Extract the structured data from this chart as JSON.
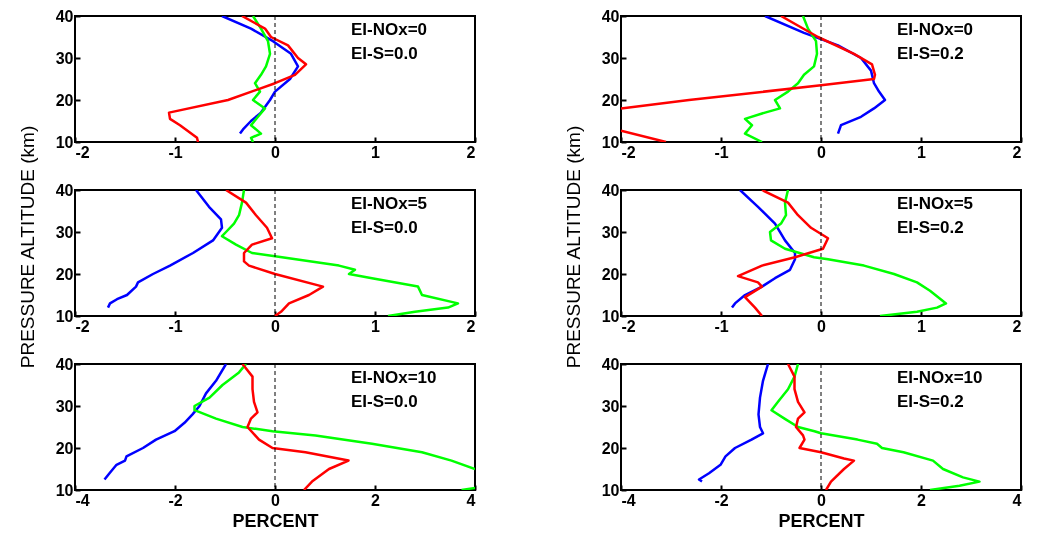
{
  "chart_data": [
    {
      "type": "line",
      "xlim": [
        -2,
        2
      ],
      "ylim": [
        10,
        40
      ],
      "xticks": [
        -2,
        -1,
        0,
        1,
        2
      ],
      "yticks": [
        10,
        20,
        30,
        40
      ],
      "annotations": [
        "EI-NOx=0",
        "EI-S=0.0"
      ],
      "ref_lines": [
        {
          "axis": "x",
          "value": 0,
          "color": "#000000",
          "line_style": "dashed"
        }
      ],
      "series": [
        {
          "color": "#0000ff",
          "x": [
            -0.53,
            -0.24,
            -0.02,
            0.16,
            0.23,
            0.15,
            0,
            -0.05,
            -0.14,
            -0.24,
            -0.32,
            -0.35
          ],
          "values": [
            40,
            37,
            34,
            31,
            28,
            25,
            22,
            20,
            17,
            15,
            13,
            12
          ]
        },
        {
          "color": "#00ff00",
          "x": [
            -0.22,
            -0.14,
            -0.07,
            -0.05,
            -0.09,
            -0.14,
            -0.2,
            -0.15,
            -0.22,
            -0.1,
            -0.17,
            -0.24,
            -0.14,
            -0.24,
            -0.22
          ],
          "values": [
            40,
            37,
            34,
            31,
            28,
            26,
            24,
            22,
            20,
            18,
            16,
            14,
            12,
            11,
            10
          ]
        },
        {
          "color": "#ff0000",
          "x": [
            -0.33,
            -0.1,
            -0.04,
            0.13,
            0.23,
            0.31,
            0.2,
            0,
            -0.47,
            -1.06,
            -1.05,
            -0.95,
            -0.78,
            -0.77
          ],
          "values": [
            40,
            37,
            35,
            33,
            30,
            28.5,
            26,
            24,
            20,
            17,
            15.5,
            14,
            11,
            10
          ]
        }
      ]
    },
    {
      "type": "line",
      "xlim": [
        -2,
        2
      ],
      "ylim": [
        10,
        40
      ],
      "xticks": [
        -2,
        -1,
        0,
        1,
        2
      ],
      "yticks": [
        10,
        20,
        30,
        40
      ],
      "annotations": [
        "EI-NOx=0",
        "EI-S=0.2"
      ],
      "ref_lines": [
        {
          "axis": "x",
          "value": 0,
          "color": "#000000",
          "line_style": "dashed"
        }
      ],
      "series": [
        {
          "color": "#0000ff",
          "x": [
            -0.56,
            -0.17,
            0.17,
            0.4,
            0.5,
            0.53,
            0.58,
            0.64,
            0.53,
            0.4,
            0.2,
            0.17
          ],
          "values": [
            40,
            36,
            33,
            30,
            27,
            24,
            22,
            20,
            18,
            16,
            14,
            12
          ]
        },
        {
          "color": "#00ff00",
          "x": [
            -0.18,
            -0.13,
            -0.05,
            -0.04,
            -0.07,
            -0.17,
            -0.23,
            -0.33,
            -0.46,
            -0.41,
            -0.56,
            -0.76,
            -0.69,
            -0.76,
            -0.59
          ],
          "values": [
            40,
            37,
            34,
            31,
            28,
            26,
            24,
            22,
            20,
            18,
            17,
            15.5,
            14,
            12,
            10
          ]
        },
        {
          "color": "#ff0000",
          "x": [
            -0.4,
            -0.03,
            0.33,
            0.51,
            0.54,
            0.53,
            0,
            -1.32,
            -2,
            null,
            -2,
            -1.55
          ],
          "values": [
            40,
            35,
            31,
            28.5,
            26,
            25,
            23.5,
            20,
            18,
            null,
            12.7,
            10
          ]
        }
      ]
    },
    {
      "type": "line",
      "xlim": [
        -2,
        2
      ],
      "ylim": [
        10,
        40
      ],
      "xticks": [
        -2,
        -1,
        0,
        1,
        2
      ],
      "yticks": [
        10,
        20,
        30,
        40
      ],
      "ylabel": "PRESSURE ALTITUDE (km)",
      "annotations": [
        "EI-NOx=5",
        "EI-S=0.0"
      ],
      "ref_lines": [
        {
          "axis": "x",
          "value": 0,
          "color": "#000000",
          "line_style": "dashed"
        }
      ],
      "series": [
        {
          "color": "#0000ff",
          "x": [
            -0.79,
            -0.66,
            -0.54,
            -0.53,
            -0.62,
            -0.82,
            -1.05,
            -1.22,
            -1.37,
            -1.39,
            -1.48,
            -1.58,
            -1.65,
            -1.67
          ],
          "values": [
            40,
            36,
            33,
            31,
            28,
            25,
            22,
            20,
            18,
            17,
            15,
            14,
            13,
            12
          ]
        },
        {
          "color": "#00ff00",
          "x": [
            -0.31,
            -0.33,
            -0.36,
            -0.41,
            -0.49,
            -0.53,
            -0.39,
            -0.23,
            0.07,
            0.64,
            0.8,
            0.74,
            0.97,
            1.43,
            1.47,
            1.83,
            1.73,
            1.4,
            1.13
          ],
          "values": [
            40,
            37,
            34,
            32,
            30,
            29,
            27,
            25,
            24,
            22,
            21,
            20,
            19,
            17,
            15,
            13,
            12,
            11,
            10
          ]
        },
        {
          "color": "#ff0000",
          "x": [
            -0.49,
            -0.29,
            -0.19,
            -0.08,
            -0.03,
            -0.23,
            -0.31,
            -0.31,
            -0.26,
            0,
            0.48,
            0.34,
            0.14,
            0.06,
            0
          ],
          "values": [
            40,
            37,
            34,
            31,
            28.5,
            27,
            25,
            23,
            22,
            20,
            17,
            15,
            13,
            11,
            10
          ]
        }
      ]
    },
    {
      "type": "line",
      "xlim": [
        -2,
        2
      ],
      "ylim": [
        10,
        40
      ],
      "xticks": [
        -2,
        -1,
        0,
        1,
        2
      ],
      "yticks": [
        10,
        20,
        30,
        40
      ],
      "ylabel": "PRESSURE ALTITUDE (km)",
      "annotations": [
        "EI-NOx=5",
        "EI-S=0.2"
      ],
      "ref_lines": [
        {
          "axis": "x",
          "value": 0,
          "color": "#000000",
          "line_style": "dashed"
        }
      ],
      "series": [
        {
          "color": "#0000ff",
          "x": [
            -0.81,
            -0.63,
            -0.46,
            -0.36,
            -0.26,
            -0.26,
            -0.31,
            -0.46,
            -0.59,
            -0.76,
            -0.86,
            -0.89
          ],
          "values": [
            40,
            36,
            32,
            28,
            25,
            23.5,
            21,
            19,
            17,
            15,
            13,
            12
          ]
        },
        {
          "color": "#00ff00",
          "x": [
            -0.33,
            -0.36,
            -0.35,
            -0.4,
            -0.51,
            -0.5,
            -0.36,
            -0.07,
            0.07,
            0.43,
            0.73,
            0.96,
            1.09,
            1.25,
            1.16,
            0.96,
            0.59
          ],
          "values": [
            40,
            37,
            34,
            32,
            30,
            28,
            26,
            24,
            23.5,
            22,
            20,
            18,
            16,
            13,
            12,
            11,
            10
          ]
        },
        {
          "color": "#ff0000",
          "x": [
            -0.59,
            -0.33,
            -0.23,
            -0.1,
            0.07,
            0.02,
            -0.26,
            -0.59,
            -0.83,
            -0.63,
            -0.59,
            -0.76,
            -0.66,
            -0.59
          ],
          "values": [
            40,
            37,
            34,
            31,
            28.5,
            26,
            24,
            22,
            19.5,
            18,
            17,
            14.5,
            12,
            10
          ]
        }
      ]
    },
    {
      "type": "line",
      "xlim": [
        -4,
        4
      ],
      "ylim": [
        10,
        40
      ],
      "xticks": [
        -4,
        -2,
        0,
        2,
        4
      ],
      "yticks": [
        10,
        20,
        30,
        40
      ],
      "xlabel": "PERCENT",
      "annotations": [
        "EI-NOx=10",
        "EI-S=0.0"
      ],
      "ref_lines": [
        {
          "axis": "x",
          "value": 0,
          "color": "#000000",
          "line_style": "dashed"
        }
      ],
      "series": [
        {
          "color": "#0000ff",
          "x": [
            -0.98,
            -1.18,
            -1.38,
            -1.51,
            -1.65,
            -1.81,
            -2.01,
            -2.38,
            -2.64,
            -2.97,
            -3.0,
            -3.17,
            -3.31,
            -3.41
          ],
          "values": [
            40,
            36,
            33,
            30,
            28,
            26,
            24,
            22,
            20,
            18,
            17,
            16,
            14,
            12.5
          ]
        },
        {
          "color": "#00ff00",
          "x": [
            -0.58,
            -0.72,
            -1.05,
            -1.31,
            -1.61,
            -1.61,
            -1.18,
            -0.65,
            -0.05,
            0.81,
            1.94,
            2.94,
            3.53,
            4,
            null,
            4,
            3.73
          ],
          "values": [
            40,
            38,
            35,
            32,
            30,
            29,
            27,
            25,
            24,
            23,
            21,
            19,
            17,
            15,
            null,
            10.5,
            10
          ]
        },
        {
          "color": "#ff0000",
          "x": [
            -0.65,
            -0.45,
            -0.45,
            -0.42,
            -0.35,
            -0.48,
            -0.55,
            -0.32,
            -0.05,
            0.61,
            1.47,
            1.08,
            0.74,
            0.58
          ],
          "values": [
            40,
            37,
            34,
            31,
            28.5,
            27,
            25,
            22,
            20,
            19,
            17,
            15,
            12,
            10
          ]
        }
      ]
    },
    {
      "type": "line",
      "xlim": [
        -4,
        4
      ],
      "ylim": [
        10,
        40
      ],
      "xticks": [
        -4,
        -2,
        0,
        2,
        4
      ],
      "yticks": [
        10,
        20,
        30,
        40
      ],
      "xlabel": "PERCENT",
      "annotations": [
        "EI-NOx=10",
        "EI-S=0.2"
      ],
      "ref_lines": [
        {
          "axis": "x",
          "value": 0,
          "color": "#000000",
          "line_style": "dashed"
        }
      ],
      "series": [
        {
          "color": "#0000ff",
          "x": [
            -1.06,
            -1.16,
            -1.22,
            -1.25,
            -1.22,
            -1.16,
            -1.39,
            -1.72,
            -1.91,
            -2.01,
            -2.24,
            -2.44,
            -2.38
          ],
          "values": [
            40,
            36,
            32,
            28,
            25,
            23.5,
            22,
            20,
            18,
            16,
            14,
            12.5,
            12
          ]
        },
        {
          "color": "#00ff00",
          "x": [
            -0.46,
            -0.53,
            -0.66,
            -0.86,
            -0.99,
            -0.73,
            -0.46,
            -0.13,
            0,
            0.73,
            1.12,
            1.22,
            1.65,
            2.24,
            2.44,
            2.84,
            3.17,
            2.77,
            2.18
          ],
          "values": [
            40,
            37,
            34,
            31,
            29,
            27,
            25,
            24,
            23.5,
            22,
            21,
            20,
            19,
            17,
            15,
            13,
            12,
            11,
            10
          ]
        },
        {
          "color": "#ff0000",
          "x": [
            -0.66,
            -0.53,
            -0.53,
            -0.46,
            -0.33,
            -0.46,
            -0.5,
            -0.36,
            -0.33,
            -0.43,
            0,
            0.46,
            0.66,
            0.46,
            0.2,
            0.1
          ],
          "values": [
            40,
            37,
            34,
            31,
            28.5,
            27,
            25,
            23,
            22,
            20,
            19,
            17.5,
            17,
            15,
            12,
            10
          ]
        }
      ]
    }
  ]
}
